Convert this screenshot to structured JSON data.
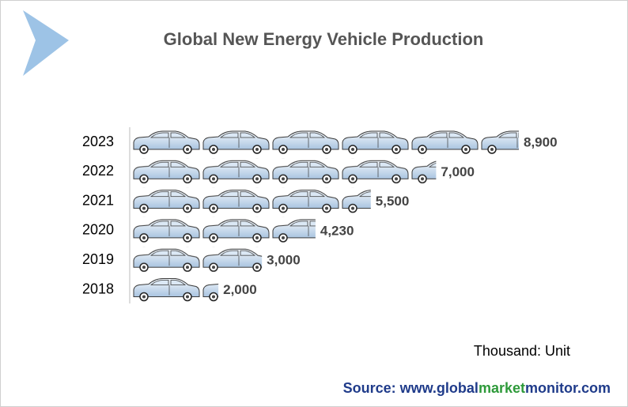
{
  "chart_data": {
    "type": "pictograph",
    "title": "Global New Energy Vehicle Production",
    "categories": [
      "2023",
      "2022",
      "2021",
      "2020",
      "2019",
      "2018"
    ],
    "values": [
      8900,
      7000,
      5500,
      4230,
      3000,
      2000
    ],
    "value_labels": [
      "8,900",
      "7,000",
      "5,500",
      "4,230",
      "3,000",
      "2,000"
    ],
    "unit_note": "Thousand: Unit",
    "source": [
      "Source: www.global",
      "market",
      "monitor",
      ".com"
    ]
  }
}
